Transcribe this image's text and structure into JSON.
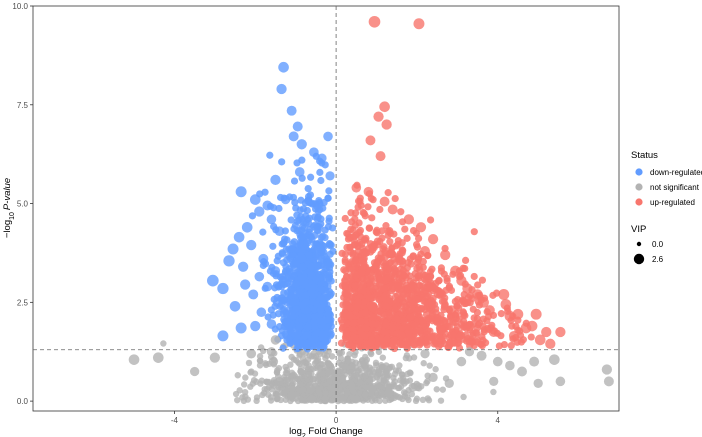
{
  "chart_data": {
    "type": "scatter",
    "title": "",
    "xlabel": "log2 Fold Change",
    "ylabel": "−log10 P-value",
    "xlim": [
      -7.5,
      7.0
    ],
    "ylim": [
      -0.25,
      10.0
    ],
    "x_ticks": [
      -4,
      0,
      4
    ],
    "y_ticks": [
      0.0,
      2.5,
      5.0,
      7.5,
      10.0
    ],
    "x_tick_labels": [
      "-4",
      "0",
      "4"
    ],
    "y_tick_labels": [
      "0.0",
      "2.5",
      "5.0",
      "7.5",
      "10.0"
    ],
    "grid": false,
    "threshold_lines": {
      "x": 0,
      "y": 1.3
    },
    "colors": {
      "down": "#619CFF",
      "ns": "#B3B3B3",
      "up": "#F8766D"
    },
    "series": [
      {
        "name": "down-regulated",
        "key": "down",
        "points": [
          [
            -1.3,
            8.45,
            1.6
          ],
          [
            -1.35,
            7.9,
            1.5
          ],
          [
            -1.1,
            7.35,
            1.4
          ],
          [
            -1.05,
            6.7,
            1.4
          ],
          [
            -0.95,
            6.95,
            1.4
          ],
          [
            -0.85,
            6.5,
            1.5
          ],
          [
            -0.2,
            6.7,
            1.3
          ],
          [
            -0.55,
            6.3,
            1.3
          ],
          [
            -0.35,
            6.15,
            1.2
          ],
          [
            -0.15,
            5.7,
            1.2
          ],
          [
            -2.35,
            5.3,
            1.7
          ],
          [
            -2.0,
            5.1,
            1.6
          ],
          [
            -1.5,
            5.6,
            1.5
          ],
          [
            -1.7,
            4.95,
            1.4
          ],
          [
            -1.9,
            4.8,
            1.5
          ],
          [
            -2.2,
            4.4,
            1.6
          ],
          [
            -2.4,
            4.15,
            1.6
          ],
          [
            -2.55,
            3.85,
            1.7
          ],
          [
            -2.1,
            3.95,
            1.5
          ],
          [
            -1.8,
            3.6,
            1.4
          ],
          [
            -2.65,
            3.55,
            1.8
          ],
          [
            -3.05,
            3.05,
            1.9
          ],
          [
            -2.8,
            2.85,
            1.8
          ],
          [
            -2.5,
            2.4,
            1.6
          ],
          [
            -2.25,
            2.95,
            1.5
          ],
          [
            -2.05,
            2.7,
            1.4
          ],
          [
            -1.85,
            2.25,
            1.3
          ],
          [
            -2.35,
            1.85,
            1.7
          ],
          [
            -2.0,
            1.9,
            1.5
          ],
          [
            -1.6,
            1.95,
            1.3
          ],
          [
            -1.7,
            2.9,
            1.3
          ],
          [
            -1.5,
            3.3,
            1.2
          ],
          [
            -1.4,
            4.3,
            1.3
          ],
          [
            -1.25,
            5.1,
            1.2
          ],
          [
            -2.8,
            1.65,
            1.7
          ],
          [
            -1.45,
            2.5,
            1.2
          ],
          [
            -1.9,
            3.15,
            1.3
          ],
          [
            -2.3,
            3.4,
            1.5
          ],
          [
            -1.6,
            4.6,
            1.3
          ],
          [
            -0.9,
            5.8,
            1.3
          ]
        ]
      },
      {
        "name": "not significant",
        "key": "ns",
        "points": [
          [
            -5.0,
            1.05,
            1.6
          ],
          [
            -4.4,
            1.1,
            1.6
          ],
          [
            -3.0,
            1.1,
            1.5
          ],
          [
            -3.5,
            0.75,
            1.2
          ],
          [
            -2.1,
            1.2,
            1.3
          ],
          [
            -1.6,
            1.25,
            1.2
          ],
          [
            -1.5,
            1.55,
            1.3
          ],
          [
            -1.55,
            1.0,
            1.2
          ],
          [
            -1.4,
            0.5,
            1.1
          ],
          [
            -1.1,
            0.15,
            1.1
          ],
          [
            -0.6,
            0.05,
            1.0
          ],
          [
            0.5,
            0.05,
            1.0
          ],
          [
            1.3,
            0.2,
            1.1
          ],
          [
            1.9,
            0.35,
            1.1
          ],
          [
            2.4,
            0.6,
            1.2
          ],
          [
            2.8,
            0.45,
            1.2
          ],
          [
            3.1,
            1.0,
            1.3
          ],
          [
            3.6,
            1.15,
            1.4
          ],
          [
            4.0,
            1.0,
            1.3
          ],
          [
            4.3,
            0.9,
            1.3
          ],
          [
            4.6,
            0.75,
            1.4
          ],
          [
            4.9,
            1.0,
            1.4
          ],
          [
            5.4,
            1.05,
            1.6
          ],
          [
            5.55,
            0.5,
            1.3
          ],
          [
            5.0,
            0.45,
            1.2
          ],
          [
            6.7,
            0.8,
            1.5
          ],
          [
            6.75,
            0.5,
            1.4
          ],
          [
            3.9,
            0.5,
            1.2
          ],
          [
            3.3,
            1.25,
            1.2
          ],
          [
            2.2,
            1.2,
            1.2
          ]
        ]
      },
      {
        "name": "up-regulated",
        "key": "up",
        "points": [
          [
            0.95,
            9.6,
            1.9
          ],
          [
            2.05,
            9.55,
            1.7
          ],
          [
            1.2,
            7.45,
            1.6
          ],
          [
            1.05,
            7.2,
            1.5
          ],
          [
            1.25,
            7.0,
            1.5
          ],
          [
            0.85,
            6.6,
            1.4
          ],
          [
            1.1,
            6.2,
            1.4
          ],
          [
            0.5,
            5.4,
            1.3
          ],
          [
            0.8,
            5.3,
            1.3
          ],
          [
            1.2,
            5.05,
            1.4
          ],
          [
            1.4,
            4.85,
            1.4
          ],
          [
            1.8,
            4.6,
            1.5
          ],
          [
            2.1,
            4.4,
            1.5
          ],
          [
            2.4,
            4.1,
            1.5
          ],
          [
            2.2,
            3.8,
            1.4
          ],
          [
            2.7,
            3.7,
            1.5
          ],
          [
            2.95,
            3.3,
            1.5
          ],
          [
            3.1,
            3.05,
            1.5
          ],
          [
            3.25,
            2.85,
            1.5
          ],
          [
            3.5,
            2.7,
            1.5
          ],
          [
            3.65,
            2.5,
            1.6
          ],
          [
            3.8,
            2.3,
            1.5
          ],
          [
            4.2,
            2.45,
            1.6
          ],
          [
            4.3,
            2.15,
            1.6
          ],
          [
            4.15,
            2.7,
            1.7
          ],
          [
            4.5,
            2.2,
            1.6
          ],
          [
            4.7,
            1.85,
            1.6
          ],
          [
            4.85,
            1.9,
            1.6
          ],
          [
            4.95,
            2.2,
            1.7
          ],
          [
            5.2,
            1.75,
            1.5
          ],
          [
            5.05,
            1.55,
            1.6
          ],
          [
            5.3,
            1.45,
            1.5
          ],
          [
            5.55,
            1.75,
            1.5
          ],
          [
            3.3,
            1.9,
            1.4
          ],
          [
            2.85,
            2.3,
            1.4
          ],
          [
            1.6,
            3.2,
            1.3
          ],
          [
            1.9,
            2.9,
            1.3
          ],
          [
            2.6,
            1.8,
            1.3
          ],
          [
            3.9,
            1.75,
            1.4
          ],
          [
            4.4,
            1.65,
            1.4
          ]
        ]
      }
    ],
    "legend": {
      "title": "Status",
      "position": "right",
      "entries": [
        {
          "key": "down",
          "label": "down-regulated"
        },
        {
          "key": "ns",
          "label": "not significant"
        },
        {
          "key": "up",
          "label": "up-regulated"
        }
      ],
      "size_title": "VIP",
      "size_entries": [
        {
          "label": "0.0",
          "vip": 0.0
        },
        {
          "label": "2.6",
          "vip": 2.6
        }
      ]
    }
  }
}
